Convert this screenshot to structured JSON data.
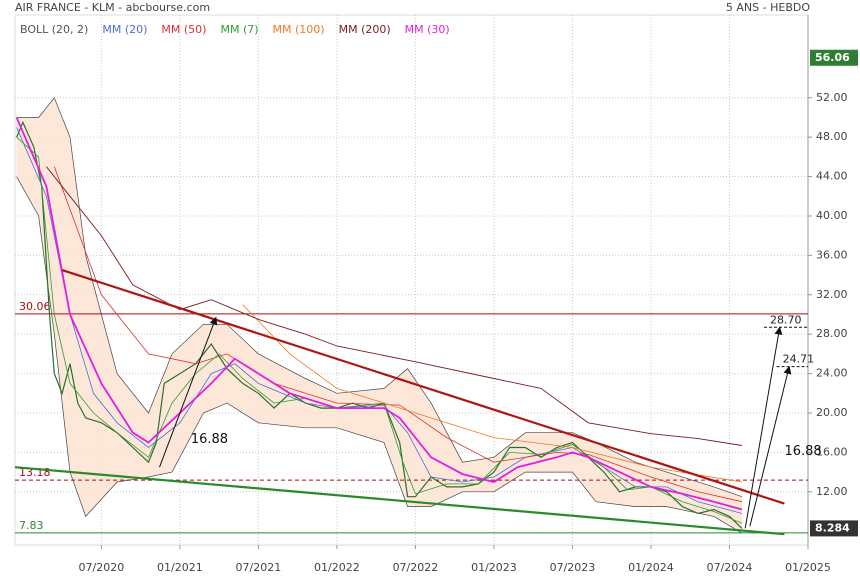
{
  "header": {
    "title": "AIR FRANCE - KLM - abcbourse.com",
    "period": "5 ANS - HEBDO"
  },
  "chart_data": {
    "type": "line",
    "xlim": [
      2019.95,
      2025.0
    ],
    "ylim": [
      6.6,
      60.4
    ],
    "xticks": [
      {
        "value": 2020.5,
        "label": "07/2020"
      },
      {
        "value": 2021.0,
        "label": "01/2021"
      },
      {
        "value": 2021.5,
        "label": "07/2021"
      },
      {
        "value": 2022.0,
        "label": "01/2022"
      },
      {
        "value": 2022.5,
        "label": "07/2022"
      },
      {
        "value": 2023.0,
        "label": "01/2023"
      },
      {
        "value": 2023.5,
        "label": "07/2023"
      },
      {
        "value": 2024.0,
        "label": "01/2024"
      },
      {
        "value": 2024.5,
        "label": "07/2024"
      },
      {
        "value": 2025.0,
        "label": "01/2025"
      }
    ],
    "yticks": [
      {
        "value": 12,
        "label": "12.00"
      },
      {
        "value": 16,
        "label": "16.00"
      },
      {
        "value": 20,
        "label": "20.00"
      },
      {
        "value": 24,
        "label": "24.00"
      },
      {
        "value": 28,
        "label": "28.00"
      },
      {
        "value": 32,
        "label": "32.00"
      },
      {
        "value": 36,
        "label": "36.00"
      },
      {
        "value": 40,
        "label": "40.00"
      },
      {
        "value": 44,
        "label": "44.00"
      },
      {
        "value": 48,
        "label": "48.00"
      },
      {
        "value": 52,
        "label": "52.00"
      }
    ],
    "bollinger": {
      "name": "BOLL (20, 2)",
      "color": "#444",
      "fill": "#fbe3d2",
      "x": [
        2019.96,
        2020.1,
        2020.2,
        2020.3,
        2020.4,
        2020.6,
        2020.8,
        2020.95,
        2021.15,
        2021.3,
        2021.5,
        2021.8,
        2022.0,
        2022.3,
        2022.45,
        2022.6,
        2022.8,
        2023.0,
        2023.2,
        2023.5,
        2023.65,
        2023.9,
        2024.1,
        2024.4,
        2024.58
      ],
      "upper": [
        50,
        50,
        52,
        48,
        36,
        24,
        20,
        26,
        29,
        29,
        26,
        23.5,
        22,
        22.5,
        24.5,
        21,
        15,
        15.5,
        18,
        18,
        17,
        15,
        14,
        12.5,
        11.5
      ],
      "lower": [
        44,
        40,
        28,
        14,
        9.5,
        13,
        13.5,
        14,
        20,
        21,
        19,
        18.5,
        18.5,
        17,
        10.5,
        10.5,
        12,
        12,
        14,
        14,
        11,
        10.5,
        10.5,
        9.5,
        7.8
      ]
    },
    "price": {
      "color": "#2b6e2b",
      "x": [
        2019.96,
        2020.0,
        2020.07,
        2020.12,
        2020.17,
        2020.2,
        2020.25,
        2020.3,
        2020.35,
        2020.4,
        2020.5,
        2020.6,
        2020.7,
        2020.8,
        2020.85,
        2020.9,
        2021.0,
        2021.1,
        2021.2,
        2021.3,
        2021.4,
        2021.5,
        2021.6,
        2021.7,
        2021.8,
        2021.9,
        2022.0,
        2022.1,
        2022.2,
        2022.3,
        2022.4,
        2022.45,
        2022.5,
        2022.6,
        2022.7,
        2022.8,
        2022.9,
        2023.0,
        2023.1,
        2023.2,
        2023.3,
        2023.4,
        2023.5,
        2023.6,
        2023.7,
        2023.8,
        2023.9,
        2024.0,
        2024.1,
        2024.2,
        2024.3,
        2024.4,
        2024.5,
        2024.58
      ],
      "values": [
        48,
        49.5,
        47,
        43,
        30,
        24,
        22,
        25,
        21,
        19.5,
        19,
        18,
        16.5,
        15,
        17,
        23,
        24,
        25,
        27,
        24.5,
        23,
        22,
        20.5,
        22,
        21,
        20.5,
        20.5,
        21,
        20.5,
        21,
        17,
        11.5,
        11.5,
        13.5,
        12.5,
        12.5,
        12.8,
        14,
        16.5,
        16.5,
        15.5,
        16.5,
        17,
        15.5,
        14,
        12,
        12.5,
        12.5,
        12,
        10.5,
        9.8,
        10.2,
        9.5,
        8.284
      ]
    },
    "series": [
      {
        "name": "MM (20)",
        "color": "#4a6fd6",
        "width": 0.8,
        "x": [
          2019.96,
          2020.15,
          2020.3,
          2020.45,
          2020.6,
          2020.8,
          2021.0,
          2021.2,
          2021.35,
          2021.5,
          2021.8,
          2022.0,
          2022.3,
          2022.45,
          2022.6,
          2022.8,
          2023.0,
          2023.2,
          2023.5,
          2023.7,
          2023.9,
          2024.1,
          2024.3,
          2024.58
        ],
        "values": [
          49,
          42,
          30,
          22,
          19,
          16.5,
          19,
          24,
          25,
          23,
          21,
          20.5,
          20.8,
          18,
          13.5,
          13,
          13.5,
          15.5,
          16.5,
          14.5,
          12.5,
          12.5,
          11,
          9.8
        ]
      },
      {
        "name": "MM (50)",
        "color": "#e03030",
        "width": 0.8,
        "x": [
          2020.2,
          2020.5,
          2020.8,
          2021.1,
          2021.3,
          2021.6,
          2022.0,
          2022.4,
          2022.7,
          2023.0,
          2023.4,
          2023.6,
          2024.0,
          2024.3,
          2024.58
        ],
        "values": [
          45,
          32,
          26,
          25,
          26,
          23,
          21,
          20.8,
          17.5,
          15,
          16,
          15.8,
          13.5,
          12,
          11
        ]
      },
      {
        "name": "MM (7)",
        "color": "#2e9e2e",
        "width": 0.8,
        "x": [
          2019.96,
          2020.1,
          2020.2,
          2020.3,
          2020.45,
          2020.6,
          2020.8,
          2020.95,
          2021.1,
          2021.25,
          2021.4,
          2021.6,
          2021.8,
          2022.0,
          2022.3,
          2022.42,
          2022.5,
          2022.7,
          2022.9,
          2023.1,
          2023.3,
          2023.5,
          2023.7,
          2023.85,
          2024.0,
          2024.2,
          2024.4,
          2024.58
        ],
        "values": [
          48,
          46,
          30,
          23,
          20,
          18,
          15.5,
          21,
          24,
          26,
          23.5,
          21,
          21.5,
          20.5,
          21,
          15,
          11.8,
          12.8,
          12.8,
          16,
          15.8,
          16.8,
          14.5,
          12.2,
          12.5,
          11,
          10,
          8.8
        ]
      },
      {
        "name": "MM (100)",
        "color": "#f07820",
        "width": 0.8,
        "x": [
          2021.4,
          2021.7,
          2022.0,
          2022.3,
          2022.6,
          2023.0,
          2023.5,
          2024.0,
          2024.58
        ],
        "values": [
          31,
          26,
          22.5,
          21,
          19.5,
          17.5,
          16.5,
          14.5,
          13
        ]
      },
      {
        "name": "MM (200)",
        "color": "#7a1c1c",
        "width": 0.9,
        "x": [
          2020.15,
          2020.3,
          2020.5,
          2020.7,
          2021.0,
          2021.2,
          2021.5,
          2021.8,
          2022.0,
          2022.5,
          2023.0,
          2023.3,
          2023.6,
          2024.0,
          2024.3,
          2024.58
        ],
        "values": [
          45,
          42,
          38,
          33,
          30.5,
          31.5,
          29.5,
          28,
          26.8,
          25.2,
          23.5,
          22.5,
          19,
          17.9,
          17.4,
          16.7
        ]
      },
      {
        "name": "MM (30)",
        "color": "#e020e0",
        "width": 1.8,
        "x": [
          2019.96,
          2020.15,
          2020.3,
          2020.5,
          2020.7,
          2020.8,
          2021.0,
          2021.2,
          2021.35,
          2021.5,
          2021.7,
          2022.0,
          2022.3,
          2022.4,
          2022.6,
          2022.8,
          2023.0,
          2023.15,
          2023.4,
          2023.5,
          2023.6,
          2023.8,
          2024.0,
          2024.2,
          2024.4,
          2024.58
        ],
        "values": [
          50,
          43,
          30,
          23,
          18,
          17,
          20,
          23,
          25.5,
          24,
          22,
          20.5,
          20.5,
          19.5,
          15.5,
          13.8,
          13,
          14.5,
          15.5,
          16,
          15.5,
          14,
          12.5,
          11.8,
          11,
          10.2
        ]
      }
    ],
    "trend_lines": [
      {
        "color": "#b01515",
        "x": [
          2020.25,
          2024.85
        ],
        "values": [
          34.5,
          10.8
        ]
      },
      {
        "color": "#2a8a2a",
        "x": [
          2019.95,
          2024.85
        ],
        "values": [
          14.5,
          7.7
        ]
      }
    ],
    "levels": [
      {
        "value": 30.06,
        "label": "30.06",
        "color": "#a01010",
        "dashed": false
      },
      {
        "value": 13.18,
        "label": "13.18",
        "color": "#a01010",
        "dashed": true
      },
      {
        "value": 7.83,
        "label": "7.83",
        "color": "#2a8a2a",
        "dashed": false
      }
    ],
    "arrows": [
      {
        "x": [
          2020.87,
          2021.23
        ],
        "values": [
          14.5,
          29.7
        ]
      },
      {
        "x": [
          2024.6,
          2024.82
        ],
        "values": [
          8.3,
          28.7
        ]
      },
      {
        "x": [
          2024.63,
          2024.88
        ],
        "values": [
          8.5,
          24.71
        ]
      }
    ],
    "targets": [
      {
        "value": 28.7,
        "label": "28.70",
        "x": 2024.72
      },
      {
        "value": 24.71,
        "label": "24.71",
        "x": 2024.8
      }
    ],
    "annotations": [
      {
        "text": "16.88",
        "x": 2021.07,
        "y": 17.3
      },
      {
        "text": "16.88",
        "x": 2024.85,
        "y": 16.1
      }
    ],
    "badges": [
      {
        "value": 56.06,
        "label": "56.06",
        "color": "#2e7d32"
      },
      {
        "value": 8.284,
        "label": "8.284",
        "color": "#333333"
      }
    ]
  }
}
